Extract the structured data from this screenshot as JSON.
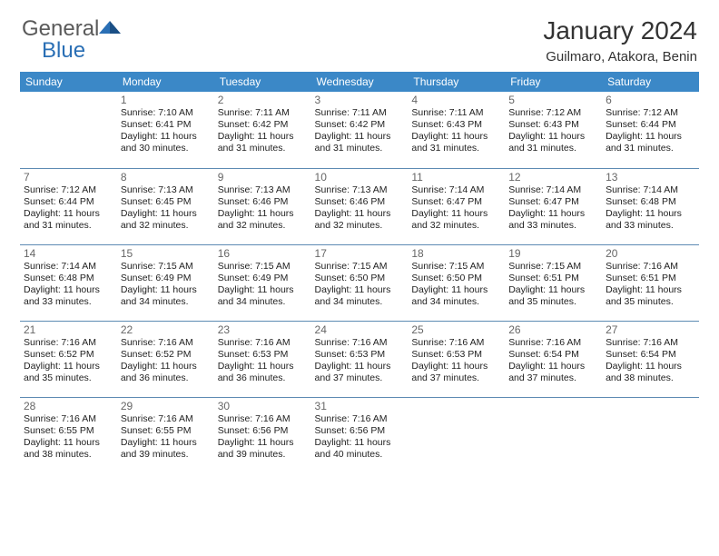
{
  "logo": {
    "text1": "General",
    "text2": "Blue"
  },
  "title": "January 2024",
  "location": "Guilmaro, Atakora, Benin",
  "colors": {
    "header_bg": "#3b88c7",
    "header_text": "#ffffff",
    "border": "#5d8bb3",
    "bg": "#ffffff",
    "daynum": "#666666",
    "text": "#222222",
    "logo_gray": "#5a5a5a",
    "logo_blue": "#2a6fb5"
  },
  "weekdays": [
    "Sunday",
    "Monday",
    "Tuesday",
    "Wednesday",
    "Thursday",
    "Friday",
    "Saturday"
  ],
  "first_day_index": 1,
  "days": [
    {
      "n": 1,
      "sr": "7:10 AM",
      "ss": "6:41 PM",
      "dl": "11 hours and 30 minutes."
    },
    {
      "n": 2,
      "sr": "7:11 AM",
      "ss": "6:42 PM",
      "dl": "11 hours and 31 minutes."
    },
    {
      "n": 3,
      "sr": "7:11 AM",
      "ss": "6:42 PM",
      "dl": "11 hours and 31 minutes."
    },
    {
      "n": 4,
      "sr": "7:11 AM",
      "ss": "6:43 PM",
      "dl": "11 hours and 31 minutes."
    },
    {
      "n": 5,
      "sr": "7:12 AM",
      "ss": "6:43 PM",
      "dl": "11 hours and 31 minutes."
    },
    {
      "n": 6,
      "sr": "7:12 AM",
      "ss": "6:44 PM",
      "dl": "11 hours and 31 minutes."
    },
    {
      "n": 7,
      "sr": "7:12 AM",
      "ss": "6:44 PM",
      "dl": "11 hours and 31 minutes."
    },
    {
      "n": 8,
      "sr": "7:13 AM",
      "ss": "6:45 PM",
      "dl": "11 hours and 32 minutes."
    },
    {
      "n": 9,
      "sr": "7:13 AM",
      "ss": "6:46 PM",
      "dl": "11 hours and 32 minutes."
    },
    {
      "n": 10,
      "sr": "7:13 AM",
      "ss": "6:46 PM",
      "dl": "11 hours and 32 minutes."
    },
    {
      "n": 11,
      "sr": "7:14 AM",
      "ss": "6:47 PM",
      "dl": "11 hours and 32 minutes."
    },
    {
      "n": 12,
      "sr": "7:14 AM",
      "ss": "6:47 PM",
      "dl": "11 hours and 33 minutes."
    },
    {
      "n": 13,
      "sr": "7:14 AM",
      "ss": "6:48 PM",
      "dl": "11 hours and 33 minutes."
    },
    {
      "n": 14,
      "sr": "7:14 AM",
      "ss": "6:48 PM",
      "dl": "11 hours and 33 minutes."
    },
    {
      "n": 15,
      "sr": "7:15 AM",
      "ss": "6:49 PM",
      "dl": "11 hours and 34 minutes."
    },
    {
      "n": 16,
      "sr": "7:15 AM",
      "ss": "6:49 PM",
      "dl": "11 hours and 34 minutes."
    },
    {
      "n": 17,
      "sr": "7:15 AM",
      "ss": "6:50 PM",
      "dl": "11 hours and 34 minutes."
    },
    {
      "n": 18,
      "sr": "7:15 AM",
      "ss": "6:50 PM",
      "dl": "11 hours and 34 minutes."
    },
    {
      "n": 19,
      "sr": "7:15 AM",
      "ss": "6:51 PM",
      "dl": "11 hours and 35 minutes."
    },
    {
      "n": 20,
      "sr": "7:16 AM",
      "ss": "6:51 PM",
      "dl": "11 hours and 35 minutes."
    },
    {
      "n": 21,
      "sr": "7:16 AM",
      "ss": "6:52 PM",
      "dl": "11 hours and 35 minutes."
    },
    {
      "n": 22,
      "sr": "7:16 AM",
      "ss": "6:52 PM",
      "dl": "11 hours and 36 minutes."
    },
    {
      "n": 23,
      "sr": "7:16 AM",
      "ss": "6:53 PM",
      "dl": "11 hours and 36 minutes."
    },
    {
      "n": 24,
      "sr": "7:16 AM",
      "ss": "6:53 PM",
      "dl": "11 hours and 37 minutes."
    },
    {
      "n": 25,
      "sr": "7:16 AM",
      "ss": "6:53 PM",
      "dl": "11 hours and 37 minutes."
    },
    {
      "n": 26,
      "sr": "7:16 AM",
      "ss": "6:54 PM",
      "dl": "11 hours and 37 minutes."
    },
    {
      "n": 27,
      "sr": "7:16 AM",
      "ss": "6:54 PM",
      "dl": "11 hours and 38 minutes."
    },
    {
      "n": 28,
      "sr": "7:16 AM",
      "ss": "6:55 PM",
      "dl": "11 hours and 38 minutes."
    },
    {
      "n": 29,
      "sr": "7:16 AM",
      "ss": "6:55 PM",
      "dl": "11 hours and 39 minutes."
    },
    {
      "n": 30,
      "sr": "7:16 AM",
      "ss": "6:56 PM",
      "dl": "11 hours and 39 minutes."
    },
    {
      "n": 31,
      "sr": "7:16 AM",
      "ss": "6:56 PM",
      "dl": "11 hours and 40 minutes."
    }
  ],
  "labels": {
    "sunrise": "Sunrise:",
    "sunset": "Sunset:",
    "daylight": "Daylight:"
  }
}
